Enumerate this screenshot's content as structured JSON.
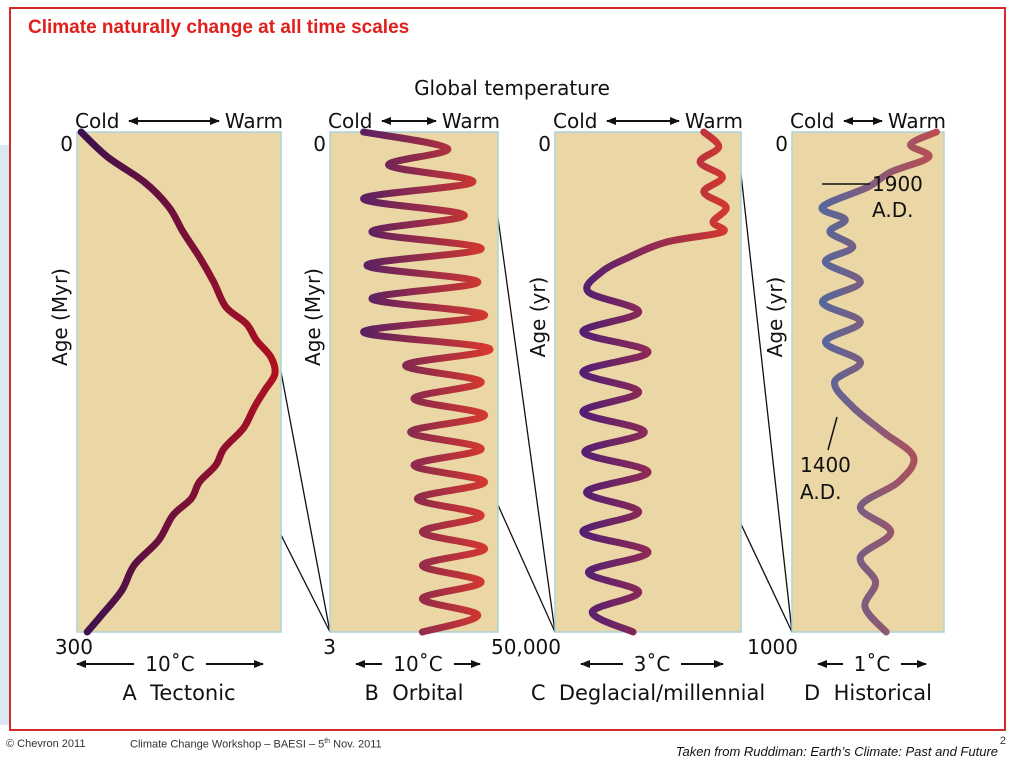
{
  "slide": {
    "title": "Climate naturally change at all time scales",
    "figure_title": "Global temperature",
    "footer": {
      "copyright": "© Chevron 2011",
      "workshop_prefix": "Climate Change Workshop – BAESI – 5",
      "workshop_sup": "th",
      "workshop_suffix": " Nov. 2011",
      "source": "Taken from Ruddiman: Earth’s Climate: Past and Future",
      "page_number": "2"
    }
  },
  "chart_data": [
    {
      "type": "line",
      "panel_label": "A  Tectonic",
      "top_label": {
        "cold": "Cold",
        "warm": "Warm"
      },
      "ylabel": "Age (Myr)",
      "y_top": "0",
      "y_bottom": "300",
      "ylim": [
        0,
        300
      ],
      "scale_label": "10˚C",
      "x_relative_range": [
        0,
        1
      ],
      "series": [
        {
          "y": [
            0,
            15,
            30,
            45,
            60,
            75,
            90,
            105,
            115,
            125,
            135,
            145,
            155,
            165,
            175,
            180,
            190,
            200,
            210,
            220,
            230,
            245,
            260,
            275,
            290,
            300
          ],
          "x": [
            0.02,
            0.15,
            0.33,
            0.45,
            0.52,
            0.6,
            0.67,
            0.73,
            0.83,
            0.88,
            0.95,
            0.97,
            0.92,
            0.87,
            0.83,
            0.8,
            0.72,
            0.68,
            0.6,
            0.56,
            0.47,
            0.4,
            0.28,
            0.22,
            0.12,
            0.05
          ]
        }
      ]
    },
    {
      "type": "line",
      "panel_label": "B  Orbital",
      "top_label": {
        "cold": "Cold",
        "warm": "Warm"
      },
      "ylabel": "Age (Myr)",
      "y_top": "0",
      "y_bottom": "3",
      "ylim": [
        0,
        3
      ],
      "scale_label": "10˚C",
      "x_relative_range": [
        0,
        1
      ],
      "series": [
        {
          "y": [
            0,
            0.1,
            0.2,
            0.3,
            0.4,
            0.5,
            0.6,
            0.7,
            0.8,
            0.9,
            1.0,
            1.1,
            1.2,
            1.3,
            1.4,
            1.5,
            1.6,
            1.7,
            1.8,
            1.9,
            2.0,
            2.1,
            2.2,
            2.3,
            2.4,
            2.5,
            2.6,
            2.7,
            2.8,
            2.9,
            3.0
          ],
          "x": [
            0.2,
            0.7,
            0.35,
            0.85,
            0.2,
            0.8,
            0.25,
            0.9,
            0.22,
            0.88,
            0.25,
            0.92,
            0.2,
            0.95,
            0.45,
            0.9,
            0.5,
            0.92,
            0.48,
            0.9,
            0.5,
            0.92,
            0.52,
            0.9,
            0.55,
            0.92,
            0.55,
            0.9,
            0.55,
            0.88,
            0.55
          ]
        }
      ]
    },
    {
      "type": "line",
      "panel_label": "C  Deglacial/millennial",
      "top_label": {
        "cold": "Cold",
        "warm": "Warm"
      },
      "ylabel": "Age (yr)",
      "y_top": "0",
      "y_bottom": "50,000",
      "ylim": [
        0,
        50000
      ],
      "scale_label": "3˚C",
      "x_relative_range": [
        0,
        1
      ],
      "series": [
        {
          "y": [
            0,
            1500,
            3000,
            4500,
            6000,
            7500,
            9000,
            10000,
            11000,
            12500,
            14000,
            16000,
            18000,
            20000,
            22000,
            24000,
            26000,
            28000,
            30000,
            32000,
            34000,
            36000,
            38000,
            40000,
            42000,
            44000,
            46000,
            48000,
            50000
          ],
          "x": [
            0.8,
            0.88,
            0.78,
            0.9,
            0.8,
            0.92,
            0.85,
            0.9,
            0.6,
            0.4,
            0.25,
            0.18,
            0.45,
            0.15,
            0.5,
            0.15,
            0.45,
            0.15,
            0.48,
            0.16,
            0.5,
            0.17,
            0.45,
            0.15,
            0.5,
            0.18,
            0.45,
            0.2,
            0.42
          ]
        }
      ]
    },
    {
      "type": "line",
      "panel_label": "D  Historical",
      "top_label": {
        "cold": "Cold",
        "warm": "Warm"
      },
      "ylabel": "Age (yr)",
      "y_top": "0",
      "y_bottom": "1000",
      "ylim": [
        0,
        1000
      ],
      "scale_label": "1˚C",
      "x_relative_range": [
        0,
        1
      ],
      "annotations": [
        {
          "text": "1900\nA.D.",
          "y": 160
        },
        {
          "text": "1400\nA.D.",
          "y": 600
        }
      ],
      "series": [
        {
          "y": [
            0,
            25,
            50,
            80,
            110,
            150,
            175,
            200,
            230,
            260,
            300,
            340,
            380,
            420,
            460,
            500,
            550,
            600,
            650,
            700,
            750,
            800,
            850,
            900,
            950,
            1000
          ],
          "x": [
            0.95,
            0.78,
            0.9,
            0.65,
            0.5,
            0.2,
            0.35,
            0.25,
            0.4,
            0.22,
            0.45,
            0.2,
            0.45,
            0.22,
            0.45,
            0.28,
            0.4,
            0.6,
            0.8,
            0.7,
            0.45,
            0.65,
            0.45,
            0.55,
            0.48,
            0.62
          ]
        }
      ]
    }
  ]
}
